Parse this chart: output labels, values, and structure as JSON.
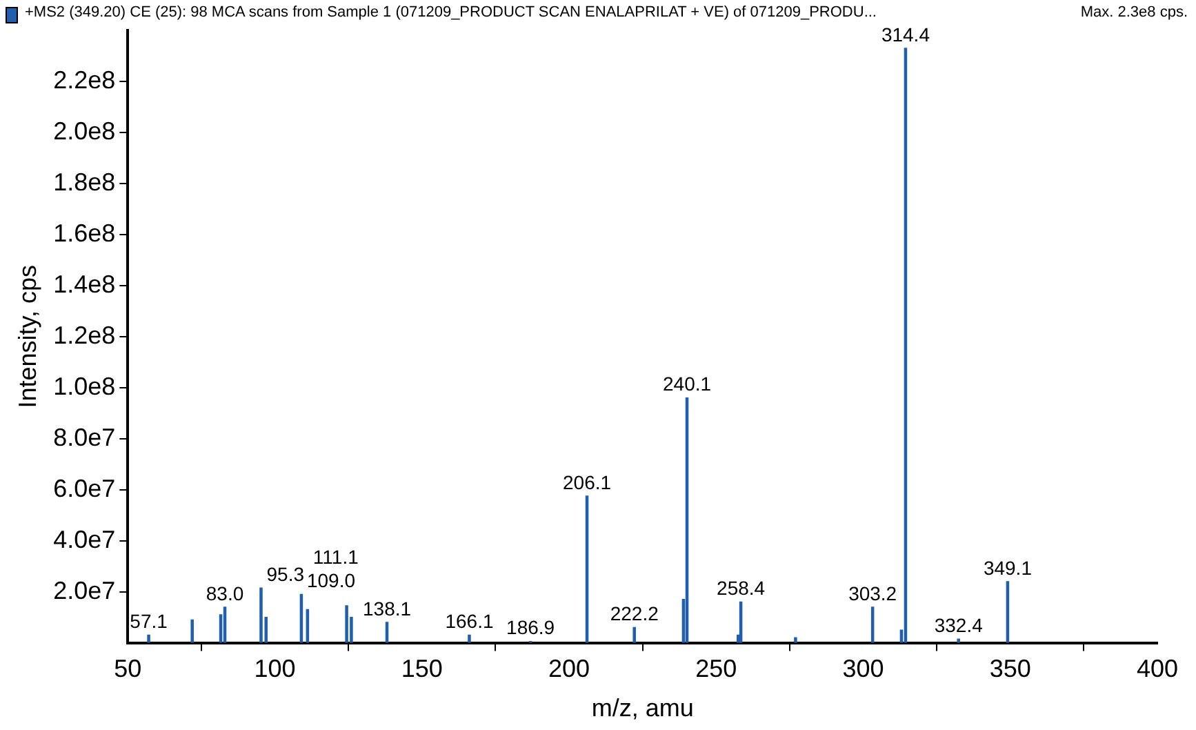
{
  "chart_data": {
    "type": "bar",
    "title": "+MS2 (349.20) CE (25): 98 MCA scans from Sample 1 (071209_PRODUCT SCAN ENALAPRILAT + VE) of 071209_PRODU...",
    "xlabel": "m/z, amu",
    "ylabel": "Intensity, cps",
    "x": [
      57.1,
      71.9,
      81.6,
      83.0,
      95.3,
      97.0,
      109.0,
      111.1,
      124.4,
      126.0,
      138.1,
      166.1,
      186.9,
      206.1,
      222.2,
      238.9,
      240.1,
      257.5,
      258.4,
      277.0,
      303.2,
      313.0,
      314.4,
      332.4,
      349.1
    ],
    "series": [
      {
        "color": "#1f5fad",
        "values": [
          3000000,
          9000000,
          11000000,
          14000000,
          21500000,
          10000000,
          19000000,
          13000000,
          14500000,
          10000000,
          8000000,
          3000000,
          500000,
          57500000,
          6000000,
          17000000,
          96000000,
          3000000,
          16000000,
          2000000,
          14000000,
          5000000,
          233000000,
          1500000,
          24000000
        ]
      }
    ],
    "xlim": [
      50,
      400
    ],
    "xticks": [
      50,
      100,
      150,
      200,
      250,
      300,
      350,
      400
    ],
    "ylim": [
      0,
      240000000
    ],
    "yticks": [
      {
        "value": 20000000,
        "label": "2.0e7"
      },
      {
        "value": 40000000,
        "label": "4.0e7"
      },
      {
        "value": 60000000,
        "label": "6.0e7"
      },
      {
        "value": 80000000,
        "label": "8.0e7"
      },
      {
        "value": 100000000,
        "label": "1.0e8"
      },
      {
        "value": 120000000,
        "label": "1.2e8"
      },
      {
        "value": 140000000,
        "label": "1.4e8"
      },
      {
        "value": 160000000,
        "label": "1.6e8"
      },
      {
        "value": 180000000,
        "label": "1.8e8"
      },
      {
        "value": 200000000,
        "label": "2.0e8"
      },
      {
        "value": 220000000,
        "label": "2.2e8"
      }
    ],
    "grid": false,
    "legend": false,
    "annotations": [
      "Max. 2.3e8 cps.",
      {
        "text": "57.1",
        "x": 57.1,
        "y": 3000000
      },
      {
        "text": "83.0",
        "x": 83.0,
        "y": 14000000
      },
      {
        "text": "95.3",
        "x": 95.3,
        "y": 21500000
      },
      {
        "text": "109.0",
        "x": 109.0,
        "y": 19000000
      },
      {
        "text": "111.1",
        "x": 111.1,
        "y": 13000000
      },
      {
        "text": "138.1",
        "x": 138.1,
        "y": 8000000
      },
      {
        "text": "166.1",
        "x": 166.1,
        "y": 3000000
      },
      {
        "text": "186.9",
        "x": 186.9,
        "y": 500000
      },
      {
        "text": "206.1",
        "x": 206.1,
        "y": 57500000
      },
      {
        "text": "222.2",
        "x": 222.2,
        "y": 6000000
      },
      {
        "text": "240.1",
        "x": 240.1,
        "y": 96000000
      },
      {
        "text": "258.4",
        "x": 258.4,
        "y": 16000000
      },
      {
        "text": "303.2",
        "x": 303.2,
        "y": 14000000
      },
      {
        "text": "314.4",
        "x": 314.4,
        "y": 233000000
      },
      {
        "text": "332.4",
        "x": 332.4,
        "y": 1500000
      },
      {
        "text": "349.1",
        "x": 349.1,
        "y": 24000000
      }
    ]
  }
}
